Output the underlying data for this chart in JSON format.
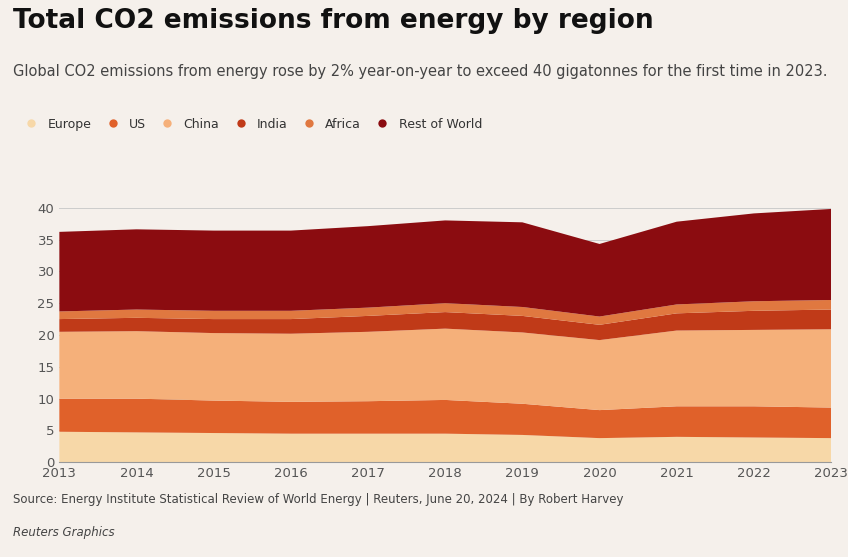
{
  "title": "Total CO2 emissions from energy by region",
  "subtitle": "Global CO2 emissions from energy rose by 2% year-on-year to exceed 40 gigatonnes for the first time in 2023.",
  "source": "Source: Energy Institute Statistical Review of World Energy | Reuters, June 20, 2024 | By Robert Harvey",
  "footer": "Reuters Graphics",
  "years": [
    2013,
    2014,
    2015,
    2016,
    2017,
    2018,
    2019,
    2020,
    2021,
    2022,
    2023
  ],
  "series": {
    "Europe": [
      4.8,
      4.7,
      4.6,
      4.5,
      4.5,
      4.5,
      4.3,
      3.8,
      4.0,
      3.9,
      3.8
    ],
    "US": [
      5.2,
      5.3,
      5.1,
      5.0,
      5.1,
      5.3,
      4.9,
      4.4,
      4.8,
      4.9,
      4.8
    ],
    "China": [
      10.5,
      10.6,
      10.6,
      10.7,
      10.9,
      11.2,
      11.2,
      11.0,
      11.9,
      12.0,
      12.3
    ],
    "India": [
      2.0,
      2.1,
      2.2,
      2.3,
      2.5,
      2.6,
      2.6,
      2.4,
      2.7,
      3.0,
      3.1
    ],
    "Africa": [
      1.2,
      1.3,
      1.3,
      1.3,
      1.3,
      1.4,
      1.4,
      1.3,
      1.4,
      1.5,
      1.5
    ],
    "Rest of World": [
      12.5,
      12.6,
      12.6,
      12.6,
      12.8,
      13.0,
      13.3,
      11.4,
      13.0,
      13.8,
      14.3
    ]
  },
  "colors": {
    "Europe": "#F7D8A8",
    "US": "#E0612A",
    "China": "#F5B07A",
    "India": "#C03A18",
    "Africa": "#E07840",
    "Rest of World": "#8B0C10"
  },
  "ylim": [
    0,
    42
  ],
  "yticks": [
    0,
    5,
    10,
    15,
    20,
    25,
    30,
    35,
    40
  ],
  "background_color": "#F5F0EB",
  "title_fontsize": 19,
  "subtitle_fontsize": 10.5,
  "source_fontsize": 8.5,
  "tick_fontsize": 9.5
}
